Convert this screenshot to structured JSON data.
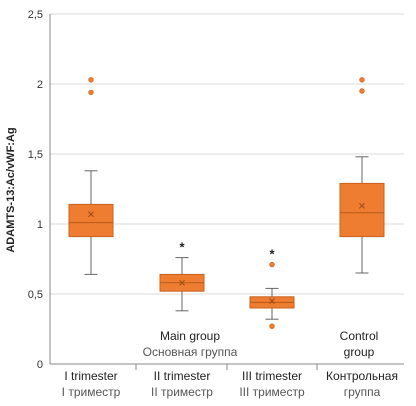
{
  "chart_data": {
    "type": "box",
    "title": "",
    "xlabel": "",
    "ylabel": "ADAMTS-13:Ac/vWF:Ag",
    "ylim": [
      0,
      2.5
    ],
    "y_ticks": [
      0,
      0.5,
      1,
      1.5,
      2,
      2.5
    ],
    "y_tick_labels": [
      "0",
      "0,5",
      "1",
      "1,5",
      "2",
      "2,5"
    ],
    "grid": "horizontal",
    "box_color": "#ee7d31",
    "box_edge_color": "#c9621e",
    "categories": [
      {
        "line1": "I trimester",
        "line2": "I триместр"
      },
      {
        "line1": "II trimester",
        "line2": "II триместр"
      },
      {
        "line1": "III trimester",
        "line2": "III триместр"
      },
      {
        "line1": "Контрольная",
        "line2": "группа"
      }
    ],
    "group_labels": [
      {
        "line1": "Main group",
        "line2": "Основная группа"
      },
      {
        "line1": "Control",
        "line2": "group"
      }
    ],
    "boxes": [
      {
        "category": "I trimester",
        "whisker_low": 0.64,
        "q1": 0.91,
        "median": 1.01,
        "mean": 1.07,
        "q3": 1.14,
        "whisker_high": 1.38,
        "outliers": [
          1.94,
          2.03
        ],
        "significance": ""
      },
      {
        "category": "II trimester",
        "whisker_low": 0.38,
        "q1": 0.52,
        "median": 0.58,
        "mean": 0.58,
        "q3": 0.64,
        "whisker_high": 0.76,
        "outliers": [],
        "significance": "*"
      },
      {
        "category": "III trimester",
        "whisker_low": 0.32,
        "q1": 0.4,
        "median": 0.44,
        "mean": 0.45,
        "q3": 0.48,
        "whisker_high": 0.54,
        "outliers": [
          0.27,
          0.71
        ],
        "significance": "*"
      },
      {
        "category": "Control group",
        "whisker_low": 0.65,
        "q1": 0.91,
        "median": 1.08,
        "mean": 1.13,
        "q3": 1.29,
        "whisker_high": 1.48,
        "outliers": [
          1.95,
          2.03
        ],
        "significance": ""
      }
    ]
  }
}
